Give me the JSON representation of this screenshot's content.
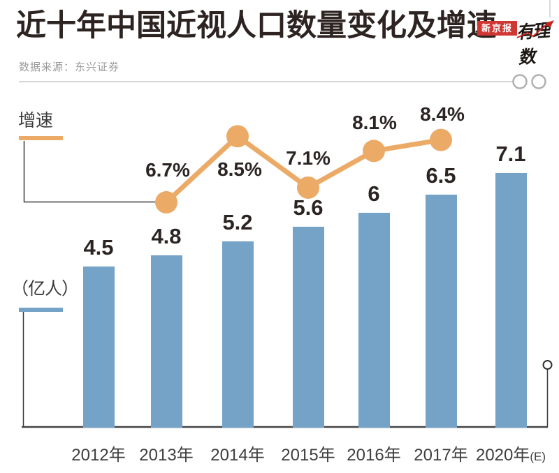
{
  "header": {
    "title": "近十年中国近视人口数量变化及增速",
    "source": "数据来源：东兴证券",
    "brand_boxed": "新京报",
    "brand_script": "有理数"
  },
  "legend": {
    "line_label": "增速",
    "bar_unit_label": "（亿人）"
  },
  "colors": {
    "bar": "#75a3c8",
    "line": "#ecaa67",
    "title": "#2d2422",
    "value_label": "#2b2423",
    "year_label": "#3f3f3f",
    "axis": "#434343",
    "connector": "#3a3a3a",
    "source": "#9b9b9b",
    "divider": "#c9c9c9",
    "glasses": "#b0b0b0",
    "brand_red": "#cf3732",
    "brand_line_red": "#c5261f"
  },
  "chart_data": {
    "type": "bar",
    "title": "近十年中国近视人口数量变化及增速",
    "subtitle": "数据来源：东兴证券",
    "categories": [
      "2012年",
      "2013年",
      "2014年",
      "2015年",
      "2016年",
      "2017年",
      "2020年(E)"
    ],
    "series": [
      {
        "name": "近视人口",
        "type": "bar",
        "unit": "亿人",
        "values": [
          4.5,
          4.8,
          5.2,
          5.6,
          6,
          6.5,
          7.1
        ],
        "labels": [
          "4.5",
          "4.8",
          "5.2",
          "5.6",
          "6",
          "6.5",
          "7.1"
        ]
      },
      {
        "name": "增速",
        "type": "line",
        "unit": "%",
        "values": [
          null,
          6.7,
          8.5,
          7.1,
          8.1,
          8.4,
          null
        ],
        "labels": [
          null,
          "6.7%",
          "8.5%",
          "7.1%",
          "8.1%",
          "8.4%",
          null
        ]
      }
    ],
    "ylabel": "（亿人）",
    "legend_position": "left",
    "grid": false
  }
}
